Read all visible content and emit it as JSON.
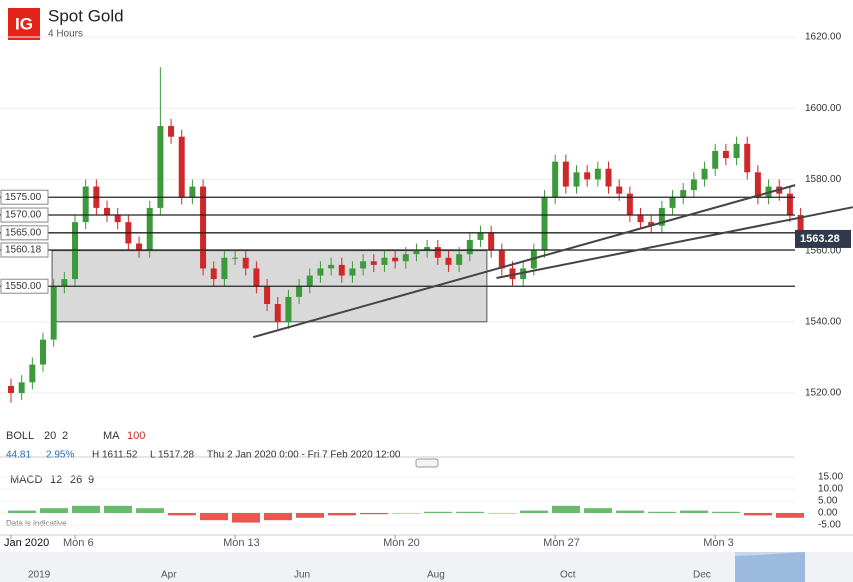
{
  "chart_data": {
    "type": "candlestick",
    "title": "Spot Gold",
    "subtitle": "4 Hours",
    "logo": "IG",
    "indicators": {
      "boll": "BOLL",
      "boll_period": "20",
      "boll_dev": "2",
      "ma": "MA",
      "ma_period": "100"
    },
    "info": {
      "change": "44.81",
      "change_pct": "2.95%",
      "high": "H 1611.52",
      "low": "L 1517.28",
      "range": "Thu 2 Jan 2020 0:00 - Fri 7 Feb 2020 12:00"
    },
    "open": [
      1522,
      1520,
      1523,
      1528,
      1535,
      1550,
      1552,
      1568,
      1578,
      1572,
      1570,
      1568,
      1562,
      1560,
      1572,
      1595,
      1592,
      1575,
      1578,
      1555,
      1552,
      1558,
      1558,
      1555,
      1550,
      1545,
      1540,
      1547,
      1550,
      1553,
      1555,
      1556,
      1553,
      1555,
      1557,
      1556,
      1558,
      1557,
      1559,
      1560,
      1561,
      1558,
      1556,
      1559,
      1563,
      1565,
      1560,
      1555,
      1552,
      1555,
      1560,
      1575,
      1585,
      1578,
      1582,
      1580,
      1583,
      1578,
      1576,
      1570,
      1568,
      1567,
      1572,
      1575,
      1577,
      1580,
      1583,
      1588,
      1586,
      1590,
      1582,
      1575,
      1578,
      1576,
      1570
    ],
    "high": [
      1524,
      1525,
      1530,
      1537,
      1552,
      1554,
      1570,
      1580,
      1580,
      1574,
      1572,
      1570,
      1564,
      1574,
      1611.52,
      1597,
      1594,
      1580,
      1580,
      1557,
      1560,
      1560,
      1560,
      1557,
      1552,
      1547,
      1549,
      1552,
      1555,
      1557,
      1558,
      1558,
      1557,
      1559,
      1559,
      1560,
      1560,
      1561,
      1562,
      1563,
      1563,
      1560,
      1561,
      1565,
      1567,
      1567,
      1562,
      1557,
      1557,
      1562,
      1577,
      1587,
      1587,
      1584,
      1584,
      1585,
      1585,
      1580,
      1578,
      1572,
      1570,
      1574,
      1577,
      1579,
      1582,
      1585,
      1590,
      1590,
      1592,
      1592,
      1584,
      1580,
      1580,
      1578,
      1572
    ],
    "low": [
      1517.28,
      1518,
      1521,
      1526,
      1533,
      1548,
      1550,
      1566,
      1570,
      1568,
      1566,
      1560,
      1558,
      1558,
      1570,
      1590,
      1573,
      1573,
      1553,
      1550,
      1550,
      1556,
      1553,
      1548,
      1543,
      1538,
      1538,
      1545,
      1548,
      1551,
      1553,
      1551,
      1551,
      1553,
      1554,
      1554,
      1555,
      1555,
      1557,
      1558,
      1556,
      1554,
      1554,
      1557,
      1561,
      1558,
      1553,
      1550,
      1550,
      1553,
      1558,
      1573,
      1576,
      1576,
      1578,
      1578,
      1576,
      1574,
      1568,
      1566,
      1565,
      1565,
      1570,
      1573,
      1575,
      1578,
      1581,
      1584,
      1584,
      1580,
      1573,
      1573,
      1574,
      1568,
      1561
    ],
    "close": [
      1520,
      1523,
      1528,
      1535,
      1550,
      1552,
      1568,
      1578,
      1572,
      1570,
      1568,
      1562,
      1560,
      1572,
      1595,
      1592,
      1575,
      1578,
      1555,
      1552,
      1558,
      1558,
      1555,
      1550,
      1545,
      1540,
      1547,
      1550,
      1553,
      1555,
      1556,
      1553,
      1555,
      1557,
      1556,
      1558,
      1557,
      1559,
      1560,
      1561,
      1558,
      1556,
      1559,
      1563,
      1565,
      1560,
      1555,
      1552,
      1555,
      1560,
      1575,
      1585,
      1578,
      1582,
      1580,
      1583,
      1578,
      1576,
      1570,
      1568,
      1567,
      1572,
      1575,
      1577,
      1580,
      1583,
      1588,
      1586,
      1590,
      1582,
      1575,
      1578,
      1576,
      1570,
      1563.28
    ],
    "up_color": "#3c9a3c",
    "down_color": "#d0282a",
    "ylim": [
      1505.4,
      1630.4
    ],
    "yticks": [
      {
        "value": 1620,
        "label": "1620.00"
      },
      {
        "value": 1600,
        "label": "1600.00"
      },
      {
        "value": 1580,
        "label": "1580.00"
      },
      {
        "value": 1560,
        "label": "1560.00"
      },
      {
        "value": 1540,
        "label": "1540.00"
      },
      {
        "value": 1520,
        "label": "1520.00"
      }
    ],
    "xticks": [
      {
        "value": 0,
        "label": "Jan 2020"
      },
      {
        "value": 6,
        "label": "Mon 6"
      },
      {
        "value": 21,
        "label": "Mon 13"
      },
      {
        "value": 36,
        "label": "Mon 20"
      },
      {
        "value": 51,
        "label": "Mon 27"
      },
      {
        "value": 66,
        "label": "Mon 3"
      }
    ],
    "levels": [
      {
        "value": 1575,
        "label": "1575.00"
      },
      {
        "value": 1570,
        "label": "1570.00"
      },
      {
        "value": 1565,
        "label": "1565.00"
      },
      {
        "value": 1560.18,
        "label": "1560.18"
      },
      {
        "value": 1550,
        "label": "1550.00"
      }
    ],
    "zone": {
      "x": [
        3.85,
        44.6
      ],
      "y": [
        1540,
        1560
      ]
    },
    "trendlines": [
      {
        "x": [
          22.7,
          73.5
        ],
        "y": [
          1535.7,
          1578.4
        ]
      },
      {
        "x": [
          45.5,
          78.9
        ],
        "y": [
          1552.3,
          1572.2
        ]
      }
    ],
    "macd": {
      "label": "MACD",
      "fast": "12",
      "slow": "26",
      "signal": "9",
      "histogram": [
        1,
        2,
        3,
        3,
        2,
        -1,
        -3,
        -4,
        -3,
        -2,
        -1,
        -0.5,
        0,
        0.5,
        0.5,
        0,
        1,
        3,
        2,
        1,
        0.5,
        1,
        0.5,
        -1,
        -2
      ],
      "ylim": [
        -9.17,
        20
      ],
      "yticks": [
        {
          "value": 15,
          "label": "15.00"
        },
        {
          "value": 10,
          "label": "10.00"
        },
        {
          "value": 5,
          "label": "5.00"
        },
        {
          "value": 0,
          "label": "0.00"
        },
        {
          "value": -5,
          "label": "-5.00"
        }
      ]
    },
    "note": "Data is indicative",
    "navigator": [
      "2019",
      "Apr",
      "Jun",
      "Aug",
      "Oct",
      "Dec"
    ]
  }
}
